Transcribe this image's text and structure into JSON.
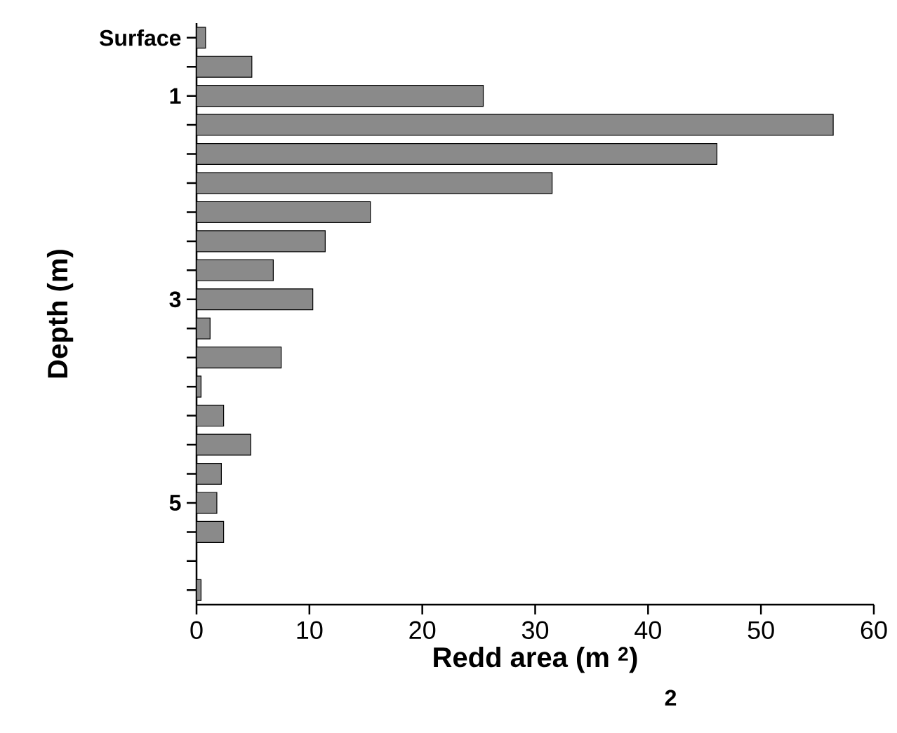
{
  "chart_data": {
    "type": "bar",
    "orientation": "horizontal",
    "xlabel": "Redd area (m $^{2}$)",
    "ylabel": "Depth (m)",
    "categories": [
      "Surface",
      null,
      "1",
      null,
      null,
      null,
      null,
      null,
      null,
      "3",
      null,
      null,
      null,
      null,
      null,
      null,
      "5",
      null,
      null,
      null
    ],
    "values": [
      0.8,
      4.9,
      25.4,
      56.4,
      46.1,
      31.5,
      15.4,
      11.4,
      6.8,
      10.3,
      1.2,
      7.5,
      0.4,
      2.4,
      4.8,
      2.2,
      1.8,
      2.4,
      null,
      0.4
    ],
    "color": "#8a8a8a",
    "xlim": [
      0,
      60
    ],
    "xticks": [
      0,
      10,
      20,
      30,
      40,
      50,
      60
    ],
    "grid": false,
    "annotations": [
      "2"
    ]
  }
}
